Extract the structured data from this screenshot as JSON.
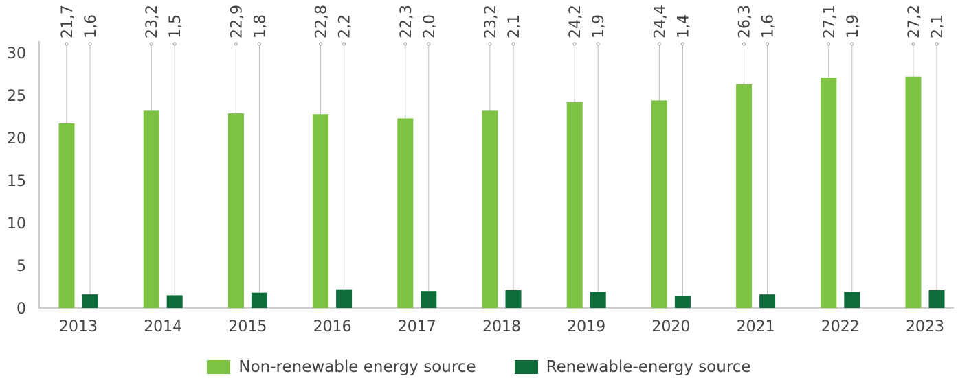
{
  "chart_data": {
    "type": "bar",
    "categories": [
      "2013",
      "2014",
      "2015",
      "2016",
      "2017",
      "2018",
      "2019",
      "2020",
      "2021",
      "2022",
      "2023"
    ],
    "series": [
      {
        "name": "Non-renewable energy source",
        "values": [
          21.7,
          23.2,
          22.9,
          22.8,
          22.3,
          23.2,
          24.2,
          24.4,
          26.3,
          27.1,
          27.2
        ],
        "labels": [
          "21,7",
          "23,2",
          "22,9",
          "22,8",
          "22,3",
          "23,2",
          "24,2",
          "24,4",
          "26,3",
          "27,1",
          "27,2"
        ],
        "color": "#7dc242"
      },
      {
        "name": "Renewable-energy source",
        "values": [
          1.6,
          1.5,
          1.8,
          2.2,
          2.0,
          2.1,
          1.9,
          1.4,
          1.6,
          1.9,
          2.1
        ],
        "labels": [
          "1,6",
          "1,5",
          "1,8",
          "2,2",
          "2,0",
          "2,1",
          "1,9",
          "1,4",
          "1,6",
          "1,9",
          "2,1"
        ],
        "color": "#0e6b3a"
      }
    ],
    "yticks": [
      "0",
      "5",
      "10",
      "15",
      "20",
      "25",
      "30"
    ],
    "ylim": [
      0,
      30
    ],
    "grid": false,
    "legend_position": "bottom-center",
    "leader_color": "#bbbbbb",
    "axis_color": "#999999",
    "text_color": "#444444"
  }
}
